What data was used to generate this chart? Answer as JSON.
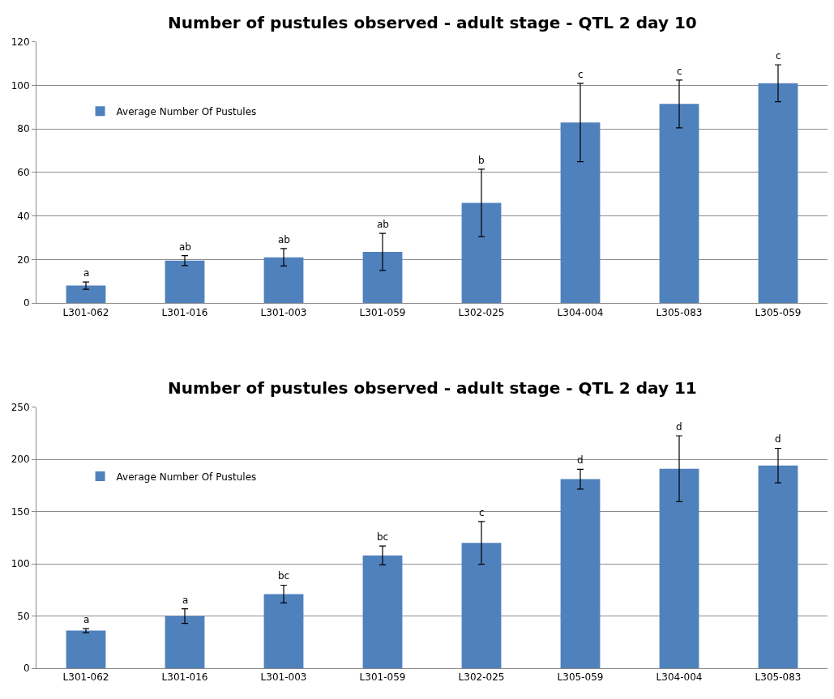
{
  "chart_data": [
    {
      "type": "bar",
      "title": "Number of pustules observed - adult stage - QTL 2 day 10",
      "categories": [
        "L301-062",
        "L301-016",
        "L301-003",
        "L301-059",
        "L302-025",
        "L304-004",
        "L305-083",
        "L305-059"
      ],
      "series": [
        {
          "name": "Average Number Of Pustules",
          "color": "#4f81bd",
          "values": [
            8,
            19.5,
            21,
            23.5,
            46,
            83,
            91.5,
            101
          ],
          "errors": [
            1.7,
            2.3,
            4,
            8.5,
            15.5,
            18,
            11,
            8.5
          ]
        }
      ],
      "ylim": [
        0,
        120
      ],
      "yticks": [
        0,
        20,
        40,
        60,
        80,
        100,
        120
      ],
      "grid": "y",
      "legend": "top left",
      "annotations": [
        {
          "text": "a",
          "x": "L301-062",
          "y": 9.7
        },
        {
          "text": "ab",
          "x": "L301-016",
          "y": 21.8
        },
        {
          "text": "ab",
          "x": "L301-003",
          "y": 25
        },
        {
          "text": "ab",
          "x": "L301-059",
          "y": 32
        },
        {
          "text": "b",
          "x": "L302-025",
          "y": 61.5
        },
        {
          "text": "c",
          "x": "L304-004",
          "y": 101
        },
        {
          "text": "c",
          "x": "L305-083",
          "y": 102.5
        },
        {
          "text": "c",
          "x": "L305-059",
          "y": 109.5
        }
      ]
    },
    {
      "type": "bar",
      "title": "Number of pustules observed - adult stage - QTL 2 day 11",
      "categories": [
        "L301-062",
        "L301-016",
        "L301-003",
        "L301-059",
        "L302-025",
        "L305-059",
        "L304-004",
        "L305-083"
      ],
      "series": [
        {
          "name": "Average Number Of Pustules",
          "color": "#4f81bd",
          "values": [
            36,
            50,
            71,
            108,
            120,
            181,
            191,
            194
          ],
          "errors": [
            2,
            7,
            8.5,
            9,
            20.5,
            9.5,
            31.5,
            16.5
          ]
        }
      ],
      "ylim": [
        0,
        250
      ],
      "yticks": [
        0,
        50,
        100,
        150,
        200,
        250
      ],
      "grid": "y",
      "legend": "top left",
      "annotations": [
        {
          "text": "a",
          "x": "L301-062",
          "y": 38
        },
        {
          "text": "a",
          "x": "L301-016",
          "y": 57
        },
        {
          "text": "bc",
          "x": "L301-003",
          "y": 79.5
        },
        {
          "text": "bc",
          "x": "L301-059",
          "y": 117
        },
        {
          "text": "c",
          "x": "L302-025",
          "y": 140.5
        },
        {
          "text": "d",
          "x": "L305-059",
          "y": 190.5
        },
        {
          "text": "d",
          "x": "L304-004",
          "y": 222.5
        },
        {
          "text": "d",
          "x": "L305-083",
          "y": 210.5
        }
      ]
    }
  ]
}
